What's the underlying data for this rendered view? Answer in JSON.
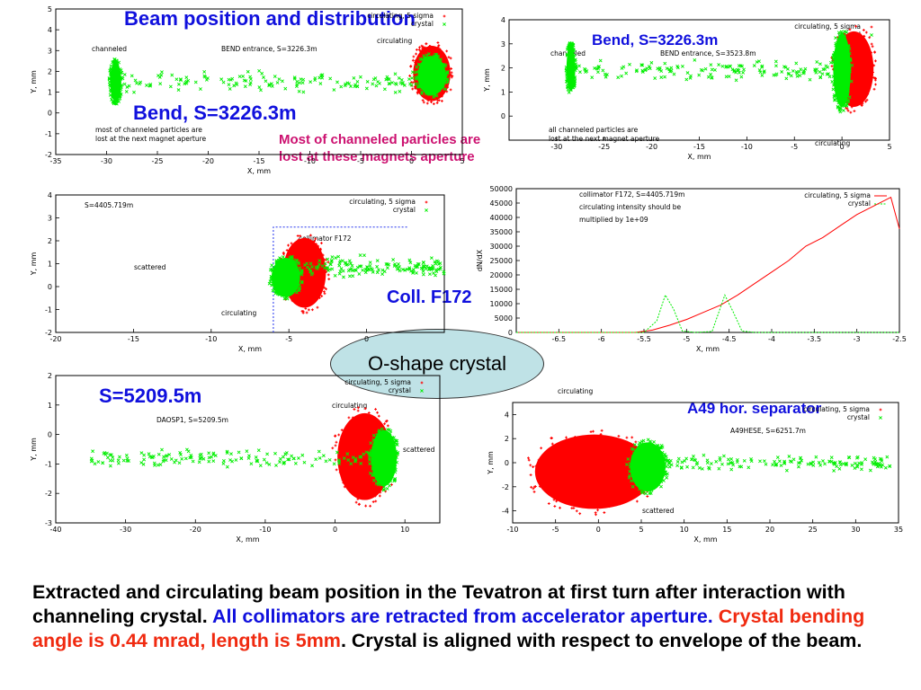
{
  "colors": {
    "circulating": "#ff0000",
    "crystal": "#00ee00",
    "blue_text": "#1010dd",
    "magenta_text": "#cc1170",
    "caption_red": "#f02a10",
    "ellipse_fill": "#bfe2e6"
  },
  "overlays": {
    "title": "Beam position and distribution",
    "bend_small": "Bend, S=3226.3m",
    "bend_big": "Bend, S=3226.3m",
    "most_lost_line1": "Most of channeled particles are",
    "most_lost_line2": "lost at these magnets aperture",
    "coll": "Coll. F172",
    "oshape": "O-shape crystal",
    "s5209": "S=5209.5m",
    "a49": "A49 hor. separator"
  },
  "caption": {
    "black1": "Extracted and circulating beam position in the Tevatron at first turn after interaction with channeling crystal. ",
    "blue": "All collimators are retracted from accelerator aperture. ",
    "red": "Crystal bending angle is 0.44 mrad, length is 5mm",
    "black2": ". Crystal is aligned with respect to envelope of the beam."
  },
  "chart_data": [
    {
      "type": "scatter",
      "xlabel": "X, mm",
      "ylabel": "Y, mm",
      "xlim": [
        -35,
        5
      ],
      "ylim": [
        -2,
        5
      ],
      "xticks": [
        "-35",
        "-30",
        "-25",
        "-20",
        "-15",
        "-10",
        "-5",
        "0",
        "5"
      ],
      "yticks": [
        "-2",
        "-1",
        "0",
        "1",
        "2",
        "3",
        "4",
        "5"
      ],
      "legend": [
        "circulating, 5 sigma",
        "crystal"
      ],
      "annotations": {
        "channeled": "channeled",
        "bend_entrance": "BEND entrance, S=3226.3m",
        "circulating": "circulating",
        "note1": "most of channeled particles are",
        "note2": "lost at the next magnet aperture"
      },
      "series": [
        {
          "name": "circulating, 5 sigma",
          "clusters": [
            {
              "x": [
                0,
                4
              ],
              "y": [
                0.5,
                3.3
              ]
            }
          ]
        },
        {
          "name": "crystal",
          "clusters": [
            {
              "x": [
                -29.7,
                -28.5
              ],
              "y": [
                0.5,
                2.5
              ]
            },
            {
              "x": [
                0.5,
                3.5
              ],
              "y": [
                0.8,
                2.8
              ]
            }
          ],
          "trail": {
            "x": [
              -29,
              1
            ],
            "y": [
              0.8,
              2.2
            ]
          }
        }
      ]
    },
    {
      "type": "scatter",
      "xlabel": "X, mm",
      "ylabel": "Y, mm",
      "xlim": [
        -35,
        5
      ],
      "ylim": [
        -1,
        4
      ],
      "xticks": [
        "-30",
        "-25",
        "-20",
        "-15",
        "-10",
        "-5",
        "0",
        "5"
      ],
      "yticks": [
        "0",
        "1",
        "2",
        "3",
        "4"
      ],
      "legend": [
        "circulating, 5 sigma",
        "crystal"
      ],
      "annotations": {
        "channeled": "channeled",
        "bend_entrance": "BEND entrance, S=3523.8m",
        "circulating": "circulating",
        "note1": "all channeled particles are",
        "note2": "lost at the next magnet aperture"
      },
      "series": [
        {
          "name": "circulating, 5 sigma",
          "clusters": [
            {
              "x": [
                -1,
                3.5
              ],
              "y": [
                0.3,
                3.6
              ]
            }
          ]
        },
        {
          "name": "crystal",
          "clusters": [
            {
              "x": [
                -29,
                -28
              ],
              "y": [
                1,
                3
              ]
            },
            {
              "x": [
                -1,
                1
              ],
              "y": [
                0.3,
                3.5
              ]
            }
          ],
          "trail": {
            "x": [
              -28,
              -1
            ],
            "y": [
              1.3,
              2.5
            ]
          }
        }
      ]
    },
    {
      "type": "scatter",
      "xlabel": "X, mm",
      "ylabel": "Y, mm",
      "xlim": [
        -20,
        5
      ],
      "ylim": [
        -2,
        4
      ],
      "xticks": [
        "-20",
        "-15",
        "-10",
        "-5",
        "0"
      ],
      "yticks": [
        "-2",
        "-1",
        "0",
        "1",
        "2",
        "3",
        "4"
      ],
      "legend": [
        "circulating, 5 sigma",
        "crystal"
      ],
      "annotations": {
        "s": "S=4405.719m",
        "collimator": "collimator F172",
        "scattered": "scattered",
        "circulating": "circulating"
      },
      "collimator_edge": {
        "x": -6,
        "y_top": 2.6
      },
      "series": [
        {
          "name": "circulating, 5 sigma",
          "clusters": [
            {
              "x": [
                -5.5,
                -2.5
              ],
              "y": [
                -1,
                2.2
              ]
            }
          ]
        },
        {
          "name": "crystal",
          "clusters": [
            {
              "x": [
                -6.2,
                -4.2
              ],
              "y": [
                -0.5,
                1.3
              ]
            }
          ],
          "trail": {
            "x": [
              -4,
              5
            ],
            "y": [
              0.2,
              1.5
            ]
          }
        }
      ]
    },
    {
      "type": "line",
      "xlabel": "X, mm",
      "ylabel": "dN/dX",
      "xlim": [
        -7,
        -2.5
      ],
      "ylim": [
        0,
        50000
      ],
      "xticks": [
        "-6.5",
        "-6",
        "-5.5",
        "-5",
        "-4.5",
        "-4",
        "-3.5",
        "-3",
        "-2.5"
      ],
      "yticks": [
        "0",
        "5000",
        "10000",
        "15000",
        "20000",
        "25000",
        "30000",
        "35000",
        "40000",
        "45000",
        "50000"
      ],
      "legend": [
        "circulating, 5 sigma",
        "crystal"
      ],
      "annotations": {
        "line1": "collimator F172, S=4405.719m",
        "line2": "circulating intensity should be",
        "line3": "multiplied by 1e+09"
      },
      "series": [
        {
          "name": "circulating, 5 sigma",
          "x": [
            -7,
            -5.6,
            -5.4,
            -5.2,
            -5,
            -4.8,
            -4.6,
            -4.4,
            -4.2,
            -4,
            -3.8,
            -3.6,
            -3.4,
            -3.2,
            -3,
            -2.8,
            -2.6,
            -2.5
          ],
          "y": [
            0,
            0,
            800,
            2500,
            4500,
            7000,
            9500,
            13000,
            17000,
            21000,
            25000,
            30000,
            33000,
            37000,
            41000,
            44000,
            47000,
            36000
          ]
        },
        {
          "name": "crystal",
          "x": [
            -7,
            -5.5,
            -5.35,
            -5.25,
            -5.15,
            -5.05,
            -4.9,
            -4.7,
            -4.55,
            -4.45,
            -4.35,
            -4.2,
            -2.5
          ],
          "y": [
            0,
            0,
            4000,
            13000,
            8000,
            500,
            0,
            300,
            13000,
            7000,
            500,
            0,
            0
          ]
        }
      ]
    },
    {
      "type": "scatter",
      "xlabel": "X, mm",
      "ylabel": "Y, mm",
      "xlim": [
        -40,
        15
      ],
      "ylim": [
        -3,
        2
      ],
      "xticks": [
        "-40",
        "-30",
        "-20",
        "-10",
        "0",
        "10"
      ],
      "yticks": [
        "-3",
        "-2",
        "-1",
        "0",
        "1",
        "2"
      ],
      "legend": [
        "circulating, 5 sigma",
        "crystal"
      ],
      "annotations": {
        "s": "DAOSP1, S=5209.5m",
        "circulating": "circulating",
        "scattered": "scattered"
      },
      "series": [
        {
          "name": "circulating, 5 sigma",
          "clusters": [
            {
              "x": [
                0,
                8.5
              ],
              "y": [
                -2.3,
                0.8
              ]
            }
          ]
        },
        {
          "name": "crystal",
          "clusters": [
            {
              "x": [
                5,
                9
              ],
              "y": [
                -1.8,
                0.2
              ]
            }
          ],
          "trail": {
            "x": [
              -35,
              5
            ],
            "y": [
              -1.2,
              -0.4
            ]
          }
        }
      ]
    },
    {
      "type": "scatter",
      "xlabel": "X, mm",
      "ylabel": "Y, mm",
      "xlim": [
        -10,
        35
      ],
      "ylim": [
        -5,
        5
      ],
      "xticks": [
        "-10",
        "-5",
        "0",
        "5",
        "10",
        "15",
        "20",
        "25",
        "30",
        "35"
      ],
      "yticks": [
        "-4",
        "-2",
        "0",
        "2",
        "4"
      ],
      "legend": [
        "circulating, 5 sigma",
        "crystal"
      ],
      "annotations": {
        "s": "A49HESE, S=6251.7m",
        "circulating": "circulating",
        "scattered": "scattered"
      },
      "series": [
        {
          "name": "circulating, 5 sigma",
          "clusters": [
            {
              "x": [
                -8,
                7
              ],
              "y": [
                -4,
                2.5
              ]
            }
          ]
        },
        {
          "name": "crystal",
          "clusters": [
            {
              "x": [
                3.5,
                8
              ],
              "y": [
                -2.5,
                1.8
              ]
            }
          ],
          "trail": {
            "x": [
              7,
              34
            ],
            "y": [
              -1,
              1
            ]
          }
        }
      ]
    }
  ]
}
